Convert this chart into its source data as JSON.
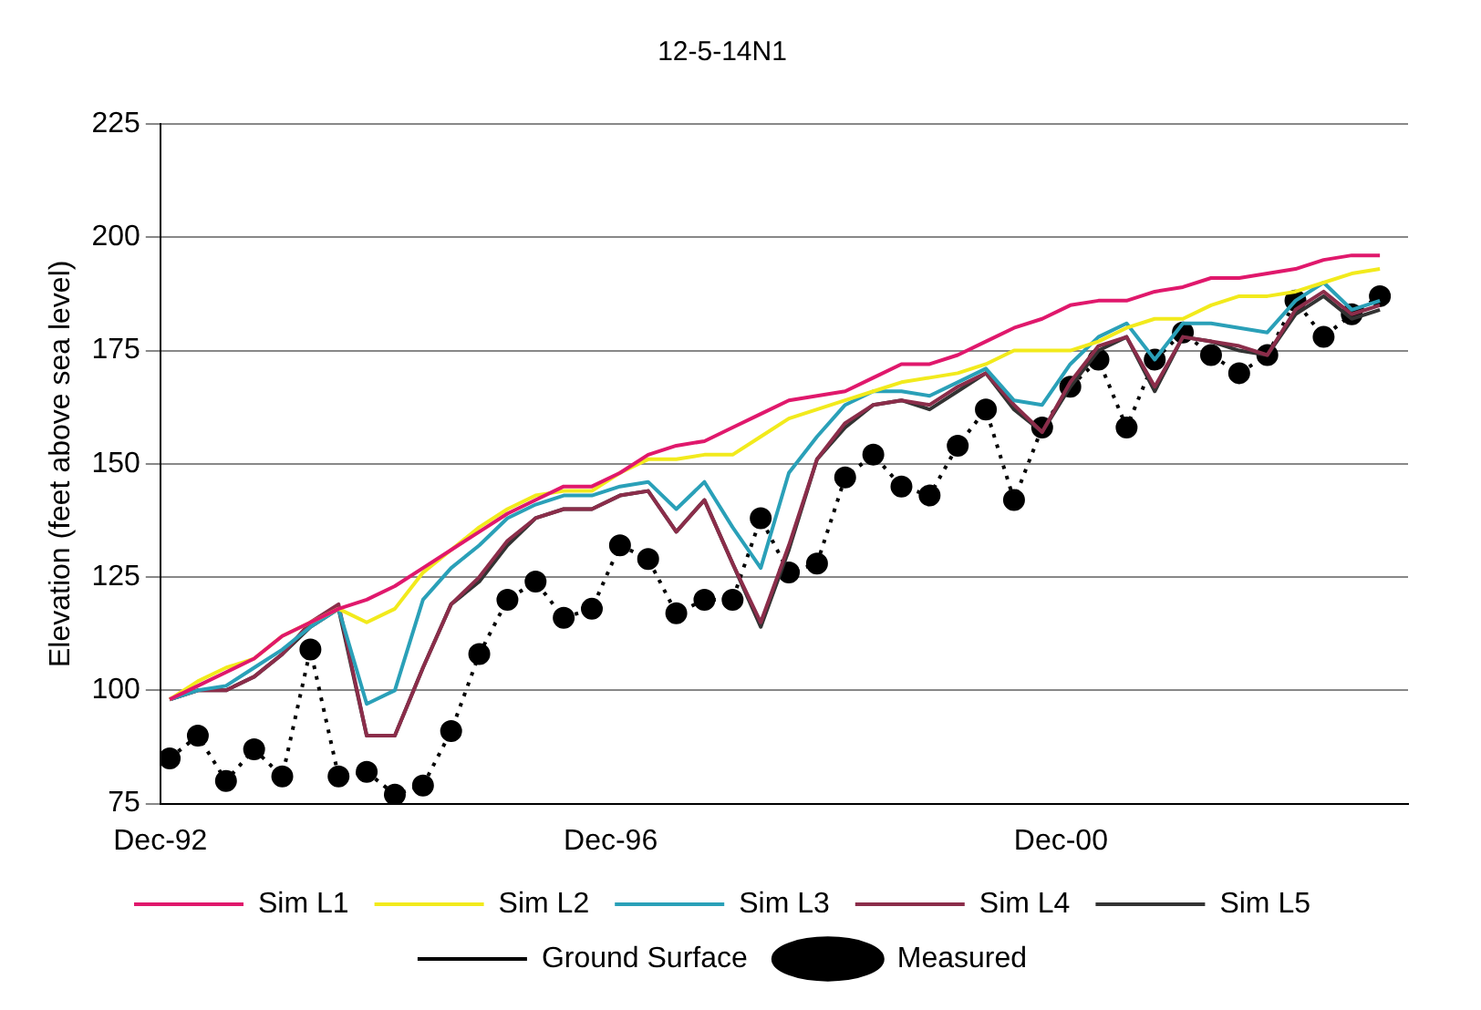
{
  "chart_data": {
    "type": "line",
    "title": "12-5-14N1",
    "ylabel": "Elevation (feet above sea level)",
    "x": [
      "1993-01",
      "1993-04",
      "1993-07",
      "1993-10",
      "1994-01",
      "1994-04",
      "1994-07",
      "1994-10",
      "1995-01",
      "1995-04",
      "1995-07",
      "1995-10",
      "1996-01",
      "1996-04",
      "1996-07",
      "1996-10",
      "1997-01",
      "1997-04",
      "1997-07",
      "1997-10",
      "1998-01",
      "1998-04",
      "1998-07",
      "1998-10",
      "1999-01",
      "1999-04",
      "1999-07",
      "1999-10",
      "2000-01",
      "2000-04",
      "2000-07",
      "2000-10",
      "2001-01",
      "2001-04",
      "2001-07",
      "2001-10",
      "2002-01",
      "2002-04",
      "2002-07",
      "2002-10",
      "2003-01",
      "2003-04",
      "2003-07",
      "2003-10"
    ],
    "xlim": [
      "1992-12",
      "2004-01"
    ],
    "xticks": [
      {
        "value": "1992-12",
        "label": "Dec-92"
      },
      {
        "value": "1996-12",
        "label": "Dec-96"
      },
      {
        "value": "2000-12",
        "label": "Dec-00"
      }
    ],
    "ylim": [
      75,
      225
    ],
    "yticks": [
      75,
      100,
      125,
      150,
      175,
      200,
      225
    ],
    "grid": "y",
    "legend": "bottom",
    "series": [
      {
        "name": "Measured",
        "color": "#000000",
        "line_style": "dotted",
        "marker": "circle",
        "values": [
          85,
          90,
          80,
          87,
          81,
          109,
          81,
          82,
          77,
          79,
          91,
          108,
          120,
          124,
          116,
          118,
          132,
          129,
          117,
          120,
          120,
          138,
          126,
          128,
          147,
          152,
          145,
          143,
          154,
          162,
          142,
          158,
          167,
          173,
          158,
          173,
          179,
          174,
          170,
          174,
          186,
          178,
          183,
          187
        ]
      },
      {
        "name": "Sim L1",
        "color": "#e0186c",
        "line_style": "solid",
        "marker": "none",
        "values": [
          98,
          101,
          104,
          107,
          112,
          115,
          118,
          120,
          123,
          127,
          131,
          135,
          139,
          142,
          145,
          145,
          148,
          152,
          154,
          155,
          158,
          161,
          164,
          165,
          166,
          169,
          172,
          172,
          174,
          177,
          180,
          182,
          185,
          186,
          186,
          188,
          189,
          191,
          191,
          192,
          193,
          195,
          196,
          196
        ]
      },
      {
        "name": "Sim L2",
        "color": "#f2ea1c",
        "line_style": "solid",
        "marker": "none",
        "values": [
          98,
          102,
          105,
          107,
          112,
          115,
          118,
          115,
          118,
          126,
          131,
          136,
          140,
          143,
          144,
          144,
          148,
          151,
          151,
          152,
          152,
          156,
          160,
          162,
          164,
          166,
          168,
          169,
          170,
          172,
          175,
          175,
          175,
          177,
          180,
          182,
          182,
          185,
          187,
          187,
          188,
          190,
          192,
          193
        ]
      },
      {
        "name": "Sim L3",
        "color": "#2aa0b8",
        "line_style": "solid",
        "marker": "none",
        "values": [
          98,
          100,
          101,
          105,
          109,
          114,
          118,
          97,
          100,
          120,
          127,
          132,
          138,
          141,
          143,
          143,
          145,
          146,
          140,
          146,
          136,
          127,
          148,
          156,
          163,
          166,
          166,
          165,
          168,
          171,
          164,
          163,
          172,
          178,
          181,
          173,
          181,
          181,
          180,
          179,
          186,
          190,
          184,
          186
        ]
      },
      {
        "name": "Sim L4",
        "color": "#8b2d4a",
        "line_style": "solid",
        "marker": "none",
        "values": [
          98,
          100,
          100,
          103,
          108,
          115,
          119,
          90,
          90,
          105,
          119,
          125,
          133,
          138,
          140,
          140,
          143,
          144,
          135,
          142,
          128,
          115,
          132,
          151,
          159,
          163,
          164,
          163,
          167,
          170,
          163,
          157,
          168,
          176,
          178,
          167,
          178,
          177,
          176,
          174,
          184,
          188,
          183,
          185
        ]
      },
      {
        "name": "Sim L5",
        "color": "#333333",
        "line_style": "solid",
        "marker": "none",
        "values": [
          98,
          100,
          100,
          103,
          108,
          114,
          118,
          90,
          90,
          105,
          119,
          124,
          132,
          138,
          140,
          140,
          143,
          144,
          135,
          142,
          128,
          114,
          131,
          151,
          158,
          163,
          164,
          162,
          166,
          170,
          162,
          157,
          167,
          175,
          178,
          166,
          178,
          177,
          175,
          174,
          183,
          187,
          182,
          184
        ]
      },
      {
        "name": "Ground Surface",
        "color": "#000000",
        "line_style": "dotted",
        "marker": "none",
        "values": [
          null,
          null,
          null,
          null,
          null,
          null,
          null,
          null,
          null,
          null,
          null,
          null,
          null,
          null,
          null,
          null,
          null,
          null,
          null,
          null,
          null,
          null,
          null,
          null,
          null,
          null,
          null,
          null,
          null,
          null,
          null,
          null,
          null,
          null,
          null,
          null,
          null,
          null,
          null,
          null,
          null,
          null,
          null,
          null
        ]
      }
    ]
  }
}
